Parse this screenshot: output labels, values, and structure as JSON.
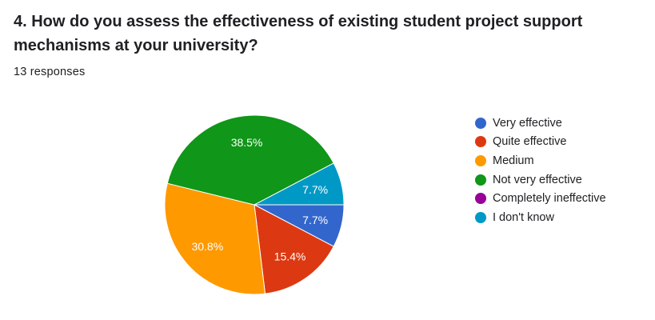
{
  "question": {
    "title": "4. How do you assess the effectiveness of existing student project support mechanisms at your university?",
    "response_count": "13 responses"
  },
  "colors": {
    "very_effective": "#3366cc",
    "quite_effective": "#dc3912",
    "medium": "#ff9900",
    "not_very_effective": "#109618",
    "completely_ineffective": "#990099",
    "i_dont_know": "#0099c6"
  },
  "chart_data": {
    "type": "pie",
    "total": 13,
    "legend_position": "right",
    "slices": [
      {
        "name": "Very effective",
        "percent": 7.7,
        "label": "7.7%",
        "color": "#3366cc"
      },
      {
        "name": "Quite effective",
        "percent": 15.4,
        "label": "15.4%",
        "color": "#dc3912"
      },
      {
        "name": "Medium",
        "percent": 30.8,
        "label": "30.8%",
        "color": "#ff9900"
      },
      {
        "name": "Not very effective",
        "percent": 38.5,
        "label": "38.5%",
        "color": "#109618"
      },
      {
        "name": "Completely ineffective",
        "percent": 0,
        "label": "",
        "color": "#990099"
      },
      {
        "name": "I don't know",
        "percent": 7.7,
        "label": "7.7%",
        "color": "#0099c6"
      }
    ]
  }
}
